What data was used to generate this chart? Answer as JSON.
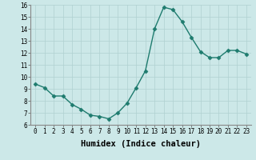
{
  "x": [
    0,
    1,
    2,
    3,
    4,
    5,
    6,
    7,
    8,
    9,
    10,
    11,
    12,
    13,
    14,
    15,
    16,
    17,
    18,
    19,
    20,
    21,
    22,
    23
  ],
  "y": [
    9.4,
    9.1,
    8.4,
    8.4,
    7.7,
    7.3,
    6.8,
    6.7,
    6.5,
    7.0,
    7.8,
    9.1,
    10.5,
    14.0,
    15.8,
    15.6,
    14.6,
    13.3,
    12.1,
    11.6,
    11.6,
    12.2,
    12.2,
    11.9
  ],
  "line_color": "#1e7b6e",
  "marker": "D",
  "marker_size": 2.5,
  "bg_color": "#cce8e8",
  "grid_color": "#b0d0d0",
  "xlabel": "Humidex (Indice chaleur)",
  "ylim": [
    6,
    16
  ],
  "xlim_min": -0.5,
  "xlim_max": 23.5,
  "yticks": [
    6,
    7,
    8,
    9,
    10,
    11,
    12,
    13,
    14,
    15,
    16
  ],
  "xticks": [
    0,
    1,
    2,
    3,
    4,
    5,
    6,
    7,
    8,
    9,
    10,
    11,
    12,
    13,
    14,
    15,
    16,
    17,
    18,
    19,
    20,
    21,
    22,
    23
  ],
  "tick_fontsize": 5.5,
  "label_fontsize": 7.5,
  "line_width": 1.0
}
